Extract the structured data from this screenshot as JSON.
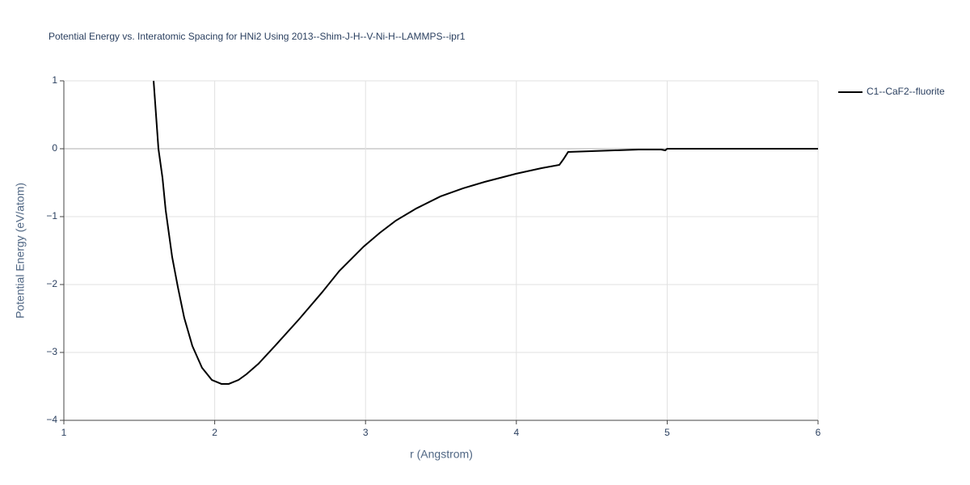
{
  "chart_data": {
    "type": "line",
    "title": "Potential Energy vs. Interatomic Spacing for HNi2 Using 2013--Shim-J-H--V-Ni-H--LAMMPS--ipr1",
    "x_label": "r (Angstrom)",
    "y_label": "Potential Energy (eV/atom)",
    "x": [
      1.595,
      1.627,
      1.654,
      1.675,
      1.718,
      1.756,
      1.798,
      1.852,
      1.916,
      1.981,
      2.045,
      2.093,
      2.158,
      2.211,
      2.29,
      2.399,
      2.559,
      2.71,
      2.827,
      2.988,
      3.095,
      3.2,
      3.336,
      3.497,
      3.647,
      3.79,
      3.996,
      4.167,
      4.285,
      4.312,
      4.343,
      4.65,
      4.81,
      4.96,
      4.987,
      5.0,
      6.0
    ],
    "series": [
      {
        "name": "C1--CaF2--fluorite",
        "color": "#000000",
        "values": [
          1,
          0,
          -0.43,
          -0.905,
          -1.595,
          -2.04,
          -2.49,
          -2.905,
          -3.226,
          -3.405,
          -3.464,
          -3.464,
          -3.405,
          -3.32,
          -3.167,
          -2.905,
          -2.512,
          -2.12,
          -1.798,
          -1.44,
          -1.238,
          -1.06,
          -0.88,
          -0.702,
          -0.583,
          -0.488,
          -0.369,
          -0.286,
          -0.238,
          -0.155,
          -0.048,
          -0.024,
          -0.012,
          -0.012,
          -0.024,
          0,
          0
        ]
      }
    ],
    "xlim": [
      1,
      6
    ],
    "ylim": [
      -4,
      1
    ],
    "xticks": [
      1,
      2,
      3,
      4,
      5,
      6
    ],
    "yticks": [
      {
        "value": -4,
        "label": "−4"
      },
      {
        "value": -3,
        "label": "−3"
      },
      {
        "value": -2,
        "label": "−2"
      },
      {
        "value": -1,
        "label": "−1"
      },
      0,
      1
    ],
    "grid": true,
    "legend": "right"
  }
}
